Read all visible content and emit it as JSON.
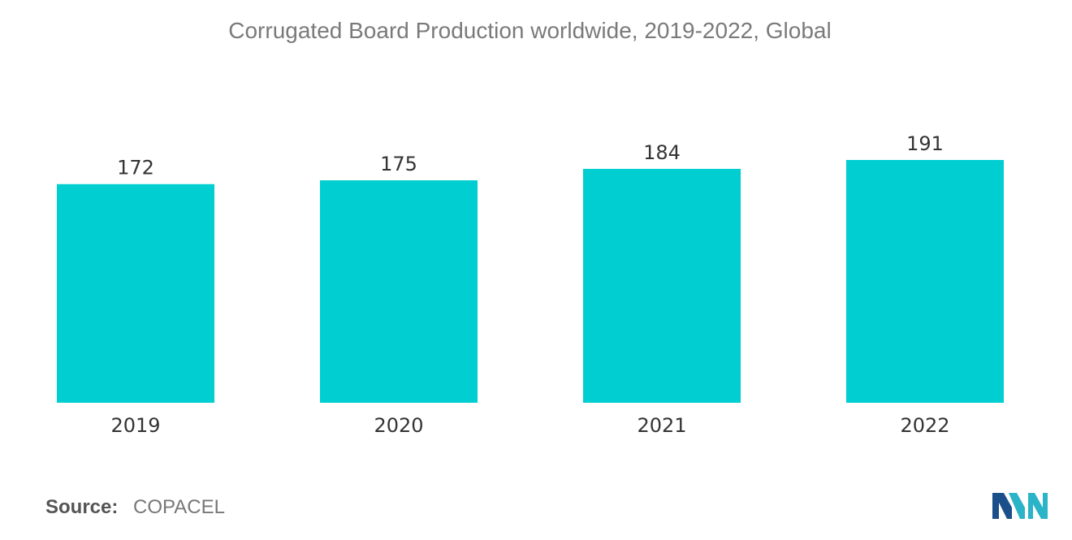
{
  "chart_data": {
    "type": "bar",
    "title": "Corrugated Board Production worldwide, 2019-2022, Global",
    "categories": [
      "2019",
      "2020",
      "2021",
      "2022"
    ],
    "values": [
      172,
      175,
      184,
      191
    ],
    "ylim": [
      0,
      191
    ],
    "grid": false,
    "legend": "none",
    "bar_color": "#00CED1"
  },
  "source": {
    "label": "Source:",
    "value": "COPACEL"
  },
  "logo": {
    "icon": "mordor-intelligence-logo-icon",
    "colors": [
      "#1b4f8a",
      "#2bb3c8"
    ]
  }
}
